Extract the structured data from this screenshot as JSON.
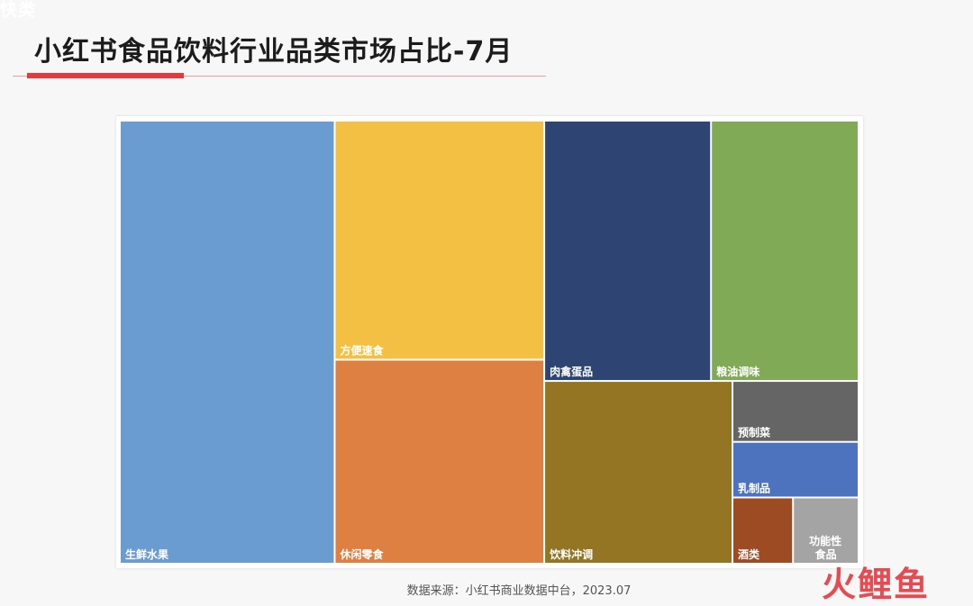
{
  "corner_tag": "快类",
  "title": "小红书食品饮料行业品类市场占比-7月",
  "source_note": "数据来源：小红书商业数据中台，2023.07",
  "watermark": "火鲤鱼",
  "colors": {
    "title_accent": "#e5393f"
  },
  "chart_data": {
    "type": "treemap",
    "title": "",
    "unit": "percent_share",
    "items": [
      {
        "name": "生鲜水果",
        "value": 28.5,
        "color": "#6a9bd1"
      },
      {
        "name": "方便速食",
        "value": 15.0,
        "color": "#f3c043"
      },
      {
        "name": "休闲零食",
        "value": 12.8,
        "color": "#df8043"
      },
      {
        "name": "肉禽蛋品",
        "value": 13.0,
        "color": "#2e4573"
      },
      {
        "name": "粮油调味",
        "value": 11.5,
        "color": "#80aa55"
      },
      {
        "name": "饮料冲调",
        "value": 10.3,
        "color": "#947524"
      },
      {
        "name": "预制菜",
        "value": 2.3,
        "color": "#656565"
      },
      {
        "name": "乳制品",
        "value": 2.1,
        "color": "#4e73be"
      },
      {
        "name": "酒类",
        "value": 1.2,
        "color": "#9c4b22"
      },
      {
        "name": "功能性食品",
        "label_lines": [
          "功能性",
          "食品"
        ],
        "value": 1.3,
        "color": "#a4a4a4"
      }
    ]
  }
}
